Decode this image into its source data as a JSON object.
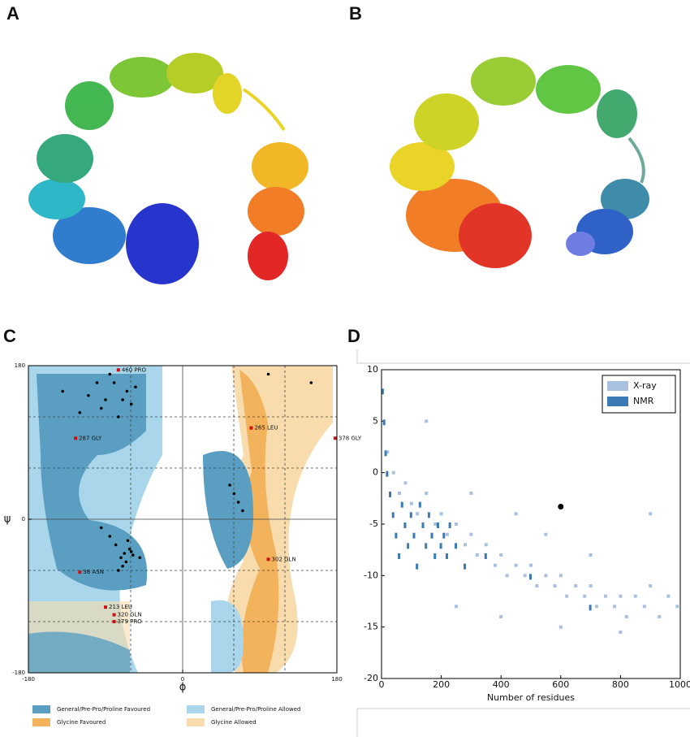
{
  "panels": [
    "A",
    "B",
    "C",
    "D"
  ],
  "chart_data": [
    {
      "type": "scatter",
      "x_label": "ϕ",
      "y_label": "ψ",
      "xlim": [
        -180,
        180
      ],
      "ylim": [
        -180,
        180
      ],
      "xticks": [
        -180,
        0,
        180
      ],
      "yticks": [
        -180,
        0,
        180
      ],
      "legend": [
        {
          "name": "General/Pre-Pro/Proline Favoured",
          "color": "#5a9fc2"
        },
        {
          "name": "General/Pre-Pro/Proline Allowed",
          "color": "#a9d6ea"
        },
        {
          "name": "Glycine Favoured",
          "color": "#f3b35c"
        },
        {
          "name": "Glycine Allowed",
          "color": "#f9dcae"
        }
      ],
      "points": {
        "color": "#000",
        "x": [
          -70,
          -65,
          -80,
          -95,
          -60,
          -110,
          -120,
          -75,
          -85,
          -140,
          -55,
          -100,
          -90,
          -68,
          -72,
          -62,
          -58,
          -66,
          -78,
          -70,
          -64,
          -60,
          -85,
          -95,
          -50,
          -75,
          55,
          60,
          65,
          70,
          100,
          150
        ],
        "y": [
          140,
          150,
          160,
          130,
          135,
          145,
          125,
          120,
          170,
          150,
          155,
          160,
          140,
          -40,
          -45,
          -35,
          -42,
          -50,
          -30,
          -55,
          -25,
          -38,
          -20,
          -10,
          -45,
          -60,
          40,
          30,
          20,
          10,
          170,
          160
        ]
      },
      "annotations": [
        {
          "text": "460 PRO",
          "x": -75,
          "y": 175
        },
        {
          "text": "287 GLY",
          "x": -125,
          "y": 95
        },
        {
          "text": "265 LEU",
          "x": 80,
          "y": 107
        },
        {
          "text": "378 GLY",
          "x": 178,
          "y": 95
        },
        {
          "text": "302 GLN",
          "x": 100,
          "y": -47
        },
        {
          "text": "38 ASN",
          "x": -120,
          "y": -62
        },
        {
          "text": "213 LEU",
          "x": -90,
          "y": -103
        },
        {
          "text": "320 GLN",
          "x": -80,
          "y": -112
        },
        {
          "text": "379 PRO",
          "x": -80,
          "y": -120
        }
      ]
    },
    {
      "type": "scatter",
      "x_label": "Number of residues",
      "xlim": [
        0,
        1000
      ],
      "ylim": [
        -20,
        10
      ],
      "xticks": [
        0,
        200,
        400,
        600,
        800,
        1000
      ],
      "yticks": [
        -20,
        -15,
        -10,
        -5,
        0,
        5,
        10
      ],
      "series": [
        {
          "name": "X-ray",
          "color": "#a9c0e0",
          "x": [
            20,
            40,
            60,
            80,
            100,
            120,
            150,
            180,
            200,
            220,
            250,
            280,
            300,
            320,
            350,
            380,
            400,
            420,
            450,
            480,
            500,
            520,
            550,
            580,
            600,
            620,
            650,
            680,
            700,
            720,
            750,
            780,
            800,
            820,
            850,
            880,
            900,
            930,
            960,
            990,
            300,
            450,
            550,
            700,
            900,
            150,
            250,
            400,
            600,
            800
          ],
          "y": [
            2,
            0,
            -2,
            -1,
            -3,
            -4,
            -2,
            -5,
            -4,
            -6,
            -5,
            -7,
            -6,
            -8,
            -7,
            -9,
            -8,
            -10,
            -9,
            -10,
            -9,
            -11,
            -10,
            -11,
            -10,
            -12,
            -11,
            -12,
            -11,
            -13,
            -12,
            -13,
            -12,
            -14,
            -12,
            -13,
            -11,
            -14,
            -12,
            -13,
            -2,
            -4,
            -6,
            -8,
            -4,
            5,
            -13,
            -14,
            -15,
            -15.5
          ]
        },
        {
          "name": "NMR",
          "color": "#3a7ab5",
          "x": [
            5,
            10,
            15,
            20,
            30,
            40,
            50,
            60,
            70,
            80,
            90,
            100,
            110,
            120,
            130,
            140,
            150,
            160,
            170,
            180,
            190,
            200,
            210,
            220,
            230,
            250,
            280,
            350,
            500,
            700
          ],
          "y": [
            8,
            5,
            2,
            0,
            -2,
            -4,
            -6,
            -8,
            -3,
            -5,
            -7,
            -4,
            -6,
            -9,
            -3,
            -5,
            -7,
            -4,
            -6,
            -8,
            -5,
            -7,
            -6,
            -8,
            -5,
            -7,
            -9,
            -8,
            -10,
            -13
          ]
        }
      ],
      "highlight": {
        "x": 600,
        "y": -3.3,
        "color": "#000"
      }
    }
  ]
}
